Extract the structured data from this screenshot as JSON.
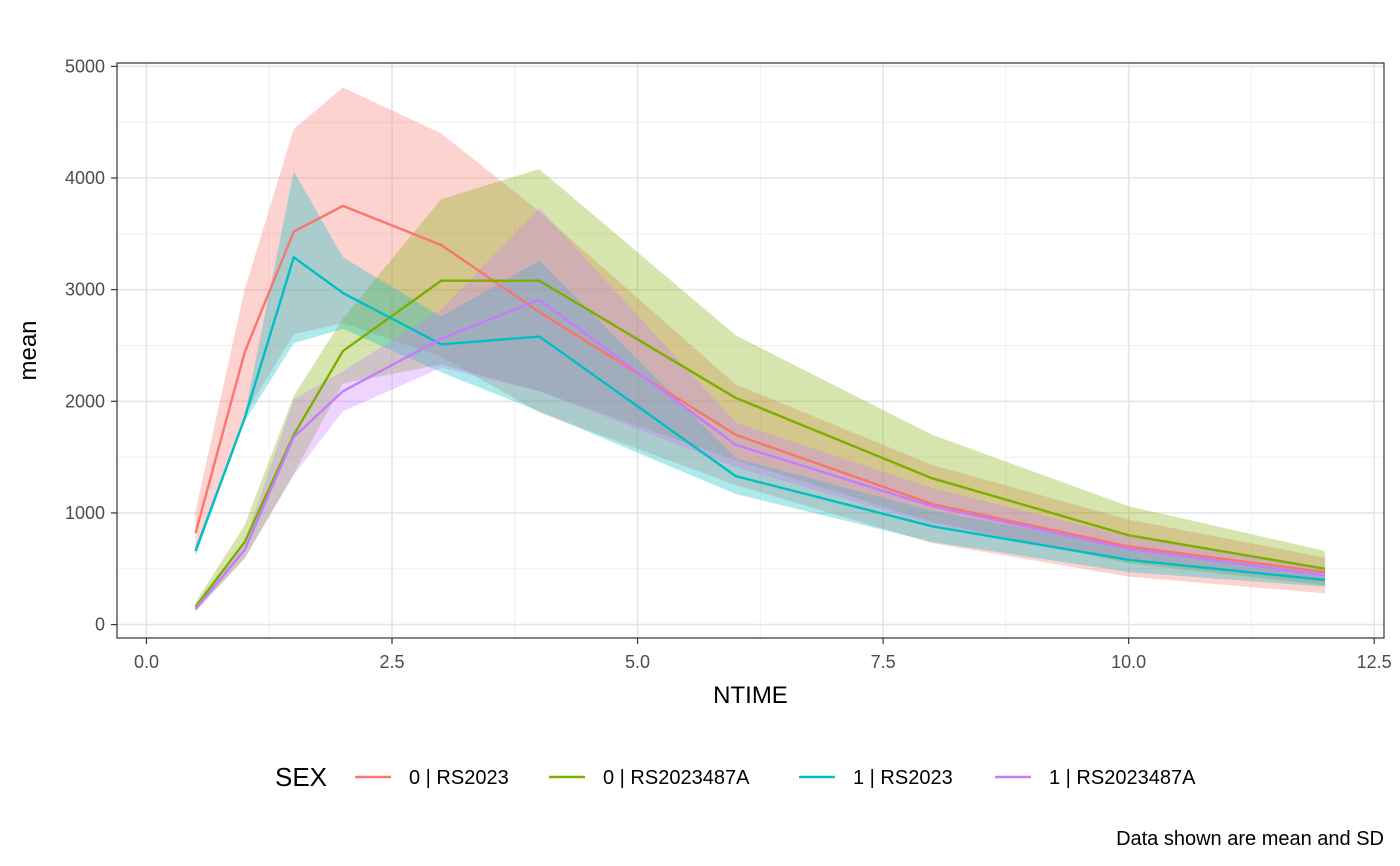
{
  "chart_data": {
    "type": "line",
    "xlabel": "NTIME",
    "ylabel": "mean",
    "xlim": [
      -0.3,
      12.6
    ],
    "ylim": [
      -120,
      5030
    ],
    "xticks": [
      0.0,
      2.5,
      5.0,
      7.5,
      10.0,
      12.5
    ],
    "xtick_labels": [
      "0.0",
      "2.5",
      "5.0",
      "7.5",
      "10.0",
      "12.5"
    ],
    "yticks": [
      0,
      1000,
      2000,
      3000,
      4000,
      5000
    ],
    "ytick_labels": [
      "0",
      "1000",
      "2000",
      "3000",
      "4000",
      "5000"
    ],
    "grid": true,
    "legend": {
      "title": "SEX",
      "position": "bottom"
    },
    "caption": "Data shown are mean and SD",
    "x": [
      0.5,
      1,
      1.5,
      2,
      3,
      4,
      6,
      8,
      10,
      12
    ],
    "series": [
      {
        "name": "0 | RS2023",
        "color": "#F8766D",
        "mean": [
          820,
          2440,
          3520,
          3750,
          3400,
          2800,
          1700,
          1080,
          700,
          470
        ],
        "lower": [
          620,
          1880,
          2600,
          2700,
          2400,
          1900,
          1250,
          730,
          430,
          280
        ],
        "upper": [
          1020,
          3000,
          4440,
          4810,
          4400,
          3700,
          2150,
          1430,
          940,
          600
        ]
      },
      {
        "name": "0 | RS2023487A",
        "color": "#7CAE00",
        "mean": [
          160,
          740,
          1700,
          2450,
          3080,
          3080,
          2030,
          1310,
          800,
          500
        ],
        "lower": [
          120,
          590,
          1350,
          2160,
          2330,
          2090,
          1470,
          920,
          550,
          350
        ],
        "upper": [
          200,
          890,
          2050,
          2740,
          3810,
          4080,
          2590,
          1700,
          1060,
          660
        ]
      },
      {
        "name": "1 | RS2023",
        "color": "#00BFC4",
        "mean": [
          660,
          1850,
          3290,
          2970,
          2510,
          2580,
          1330,
          880,
          580,
          400
        ],
        "lower": [
          620,
          1820,
          2520,
          2650,
          2260,
          1910,
          1170,
          740,
          470,
          340
        ],
        "upper": [
          700,
          1880,
          4060,
          3290,
          2760,
          3260,
          1490,
          1020,
          690,
          460
        ]
      },
      {
        "name": "1 | RS2023487A",
        "color": "#C77CFF",
        "mean": [
          140,
          670,
          1680,
          2090,
          2560,
          2910,
          1610,
          1060,
          680,
          440
        ],
        "lower": [
          120,
          600,
          1340,
          1910,
          2300,
          2090,
          1410,
          900,
          570,
          370
        ],
        "upper": [
          160,
          740,
          2020,
          2270,
          2820,
          3730,
          1810,
          1220,
          790,
          510
        ]
      }
    ]
  }
}
